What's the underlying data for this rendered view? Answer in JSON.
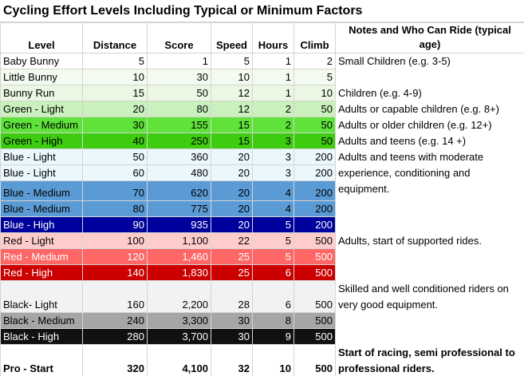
{
  "title": "Cycling Effort Levels Including Typical or Minimum Factors",
  "table": {
    "headers": [
      "Level",
      "Distance",
      "Score",
      "Speed",
      "Hours",
      "Climb",
      "Notes and Who Can Ride (typical age)"
    ],
    "rows": [
      {
        "level": "Baby Bunny",
        "distance": "5",
        "score": "1",
        "speed": "5",
        "hours": "1",
        "climb": "2",
        "notes": "Small Children (e.g. 3-5)"
      },
      {
        "level": "Little Bunny",
        "distance": "10",
        "score": "30",
        "speed": "10",
        "hours": "1",
        "climb": "5"
      },
      {
        "level": "Bunny Run",
        "distance": "15",
        "score": "50",
        "speed": "12",
        "hours": "1",
        "climb": "10",
        "notes": "Children (e.g. 4-9)"
      },
      {
        "level": "Green - Light",
        "distance": "20",
        "score": "80",
        "speed": "12",
        "hours": "2",
        "climb": "50",
        "notes": "Adults or capable children (e.g. 8+)"
      },
      {
        "level": "Green - Medium",
        "distance": "30",
        "score": "155",
        "speed": "15",
        "hours": "2",
        "climb": "50",
        "notes": "Adults or older children (e.g. 12+)"
      },
      {
        "level": "Green - High",
        "distance": "40",
        "score": "250",
        "speed": "15",
        "hours": "3",
        "climb": "50",
        "notes": "Adults and teens (e.g. 14 +)"
      },
      {
        "level": "Blue - Light",
        "distance": "50",
        "score": "360",
        "speed": "20",
        "hours": "3",
        "climb": "200",
        "notes": "Adults and teens with moderate experience, conditioning and equipment."
      },
      {
        "level": "Blue - Light",
        "distance": "60",
        "score": "480",
        "speed": "20",
        "hours": "3",
        "climb": "200"
      },
      {
        "level": "Blue - Medium",
        "distance": "70",
        "score": "620",
        "speed": "20",
        "hours": "4",
        "climb": "200"
      },
      {
        "level": "Blue - Medium",
        "distance": "80",
        "score": "775",
        "speed": "20",
        "hours": "4",
        "climb": "200"
      },
      {
        "level": "Blue - High",
        "distance": "90",
        "score": "935",
        "speed": "20",
        "hours": "5",
        "climb": "200"
      },
      {
        "level": "Red - Light",
        "distance": "100",
        "score": "1,100",
        "speed": "22",
        "hours": "5",
        "climb": "500",
        "notes": "Adults, start of supported rides."
      },
      {
        "level": "Red - Medium",
        "distance": "120",
        "score": "1,460",
        "speed": "25",
        "hours": "5",
        "climb": "500"
      },
      {
        "level": "Red - High",
        "distance": "140",
        "score": "1,830",
        "speed": "25",
        "hours": "6",
        "climb": "500"
      },
      {
        "level": "Black- Light",
        "distance": "160",
        "score": "2,200",
        "speed": "28",
        "hours": "6",
        "climb": "500",
        "notes": "Skilled and well conditioned riders on very good equipment."
      },
      {
        "level": "Black - Medium",
        "distance": "240",
        "score": "3,300",
        "speed": "30",
        "hours": "8",
        "climb": "500"
      },
      {
        "level": "Black - High",
        "distance": "280",
        "score": "3,700",
        "speed": "30",
        "hours": "9",
        "climb": "500"
      },
      {
        "level": "Pro - Start",
        "distance": "320",
        "score": "4,100",
        "speed": "32",
        "hours": "10",
        "climb": "500",
        "notes": "Start of racing, semi professional to professional riders."
      }
    ]
  }
}
